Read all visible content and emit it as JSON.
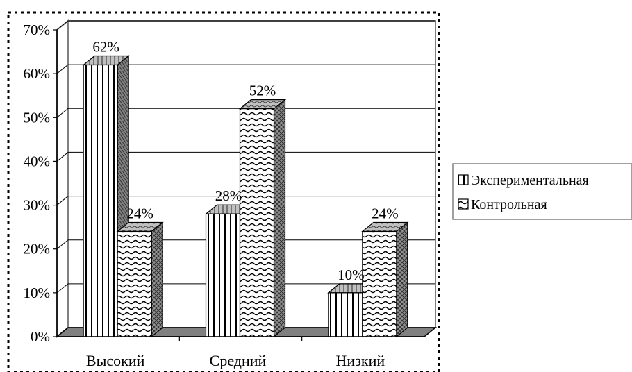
{
  "chart_data": {
    "type": "bar",
    "style": "3d-clustered-column",
    "categories": [
      "Высокий",
      "Средний",
      "Низкий"
    ],
    "series": [
      {
        "name": "Экспериментальная",
        "values": [
          62,
          28,
          10
        ],
        "pattern": "vertical-lines"
      },
      {
        "name": "Контрольная",
        "values": [
          24,
          52,
          24
        ],
        "pattern": "wave"
      }
    ],
    "data_labels": [
      [
        "62%",
        "28%",
        "10%"
      ],
      [
        "24%",
        "52%",
        "24%"
      ]
    ],
    "y_ticks": [
      "0%",
      "10%",
      "20%",
      "30%",
      "40%",
      "50%",
      "60%",
      "70%"
    ],
    "ylim": [
      0,
      70
    ],
    "grid": true,
    "legend_position": "right",
    "colors": {
      "side": "#808080",
      "top": "#c0c0c0",
      "floor": "#808080",
      "wall": "#808080",
      "grid": "#000000",
      "border": "#000000"
    }
  }
}
